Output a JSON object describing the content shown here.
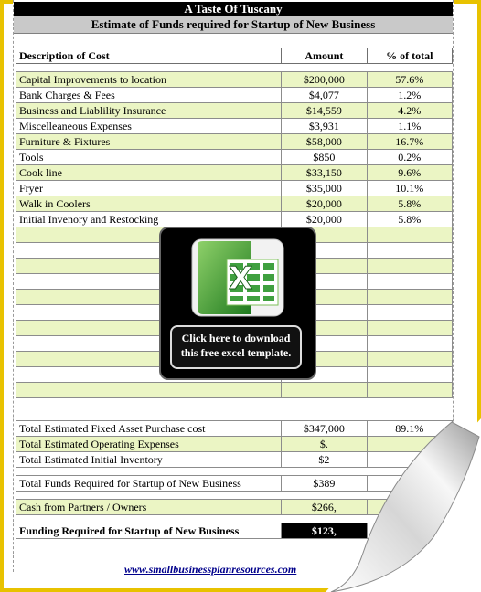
{
  "header": {
    "title": "A Taste Of Tuscany",
    "subtitle": "Estimate of Funds required for Startup of New Business"
  },
  "columns": {
    "description": "Description of Cost",
    "amount": "Amount",
    "percent": "% of total"
  },
  "costs": [
    {
      "description": "Capital Improvements to location",
      "amount": "$200,000",
      "percent": "57.6%"
    },
    {
      "description": "Bank Charges & Fees",
      "amount": "$4,077",
      "percent": "1.2%"
    },
    {
      "description": "Business and Liablility Insurance",
      "amount": "$14,559",
      "percent": "4.2%"
    },
    {
      "description": "Miscelleaneous Expenses",
      "amount": "$3,931",
      "percent": "1.1%"
    },
    {
      "description": "Furniture & Fixtures",
      "amount": "$58,000",
      "percent": "16.7%"
    },
    {
      "description": "Tools",
      "amount": "$850",
      "percent": "0.2%"
    },
    {
      "description": "Cook line",
      "amount": "$33,150",
      "percent": "9.6%"
    },
    {
      "description": "Fryer",
      "amount": "$35,000",
      "percent": "10.1%"
    },
    {
      "description": "Walk in Coolers",
      "amount": "$20,000",
      "percent": "5.8%"
    },
    {
      "description": "Initial Invenory and Restocking",
      "amount": "$20,000",
      "percent": "5.8%"
    }
  ],
  "totals": [
    {
      "description": "Total Estimated Fixed Asset Purchase cost",
      "amount": "$347,000",
      "percent": "89.1%"
    },
    {
      "description": "Total Estimated Operating Expenses",
      "amount": "$.",
      "percent": ""
    },
    {
      "description": "Total Estimated Initial Inventory",
      "amount": "$2",
      "percent": ""
    }
  ],
  "funds_required": {
    "description": "Total Funds Required for Startup of New Business",
    "amount": "$389",
    "percent": ""
  },
  "cash_partners": {
    "description": "Cash from Partners / Owners",
    "amount": "$266,",
    "percent": ""
  },
  "funding_required": {
    "description": "Funding Required for Startup of New Business",
    "amount": "$123,",
    "percent": ""
  },
  "footer_url": "www.smallbusinessplanresources.com",
  "download": {
    "line1": "Click here to download",
    "line2": "this free excel template."
  },
  "colors": {
    "frame": "#e8c200",
    "row_green": "#ebf5c4",
    "excel_green": "#2e8b2e"
  }
}
